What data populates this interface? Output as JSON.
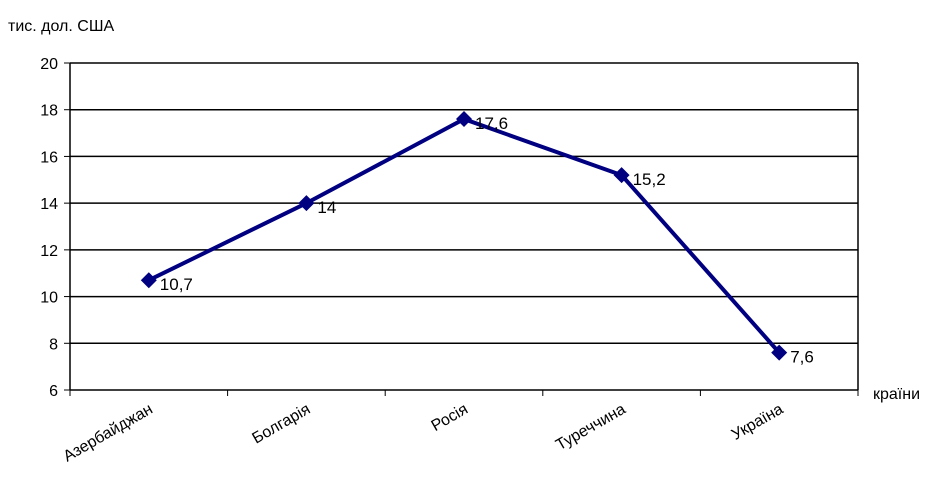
{
  "chart_data": {
    "type": "line",
    "ylabel": "тис. дол. США",
    "xlabel": "країни",
    "categories": [
      "Азербайджан",
      "Болгарія",
      "Росія",
      "Туреччина",
      "Україна"
    ],
    "series": [
      {
        "values": [
          10.7,
          14,
          17.6,
          15.2,
          7.6
        ],
        "data_labels": [
          "10,7",
          "14",
          "17,6",
          "15,2",
          "7,6"
        ]
      }
    ],
    "ylim": [
      6,
      20
    ],
    "y_ticks": [
      6,
      8,
      10,
      12,
      14,
      16,
      18,
      20
    ],
    "grid": true,
    "line_color": "#000080",
    "marker": "diamond",
    "legend": "none"
  }
}
